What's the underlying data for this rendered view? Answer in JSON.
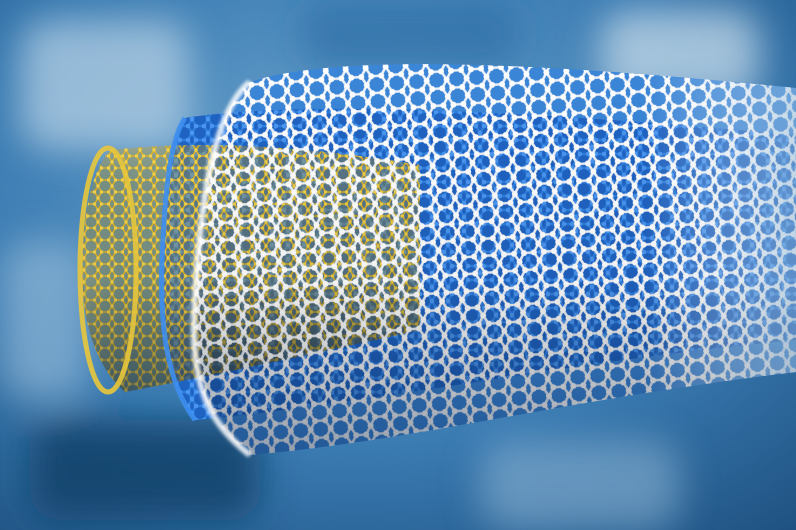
{
  "image": {
    "subject": "multi-walled-nanotube-render",
    "colors": {
      "background_light": "#a9c7dc",
      "background_mid": "#4f8fc0",
      "background_dark": "#1d4f7e",
      "inner_wall": "#e2bd2f",
      "inner_wall_dark": "#a98a12",
      "middle_wall": "#2f7fe0",
      "middle_wall_dark": "#1b55b0",
      "outer_wall": "#f4f7fb",
      "outer_wall_shade": "#b8c8da"
    },
    "walls": [
      {
        "name": "inner-wall",
        "color_key": "inner_wall"
      },
      {
        "name": "middle-wall",
        "color_key": "middle_wall"
      },
      {
        "name": "outer-wall",
        "color_key": "outer_wall"
      }
    ]
  }
}
